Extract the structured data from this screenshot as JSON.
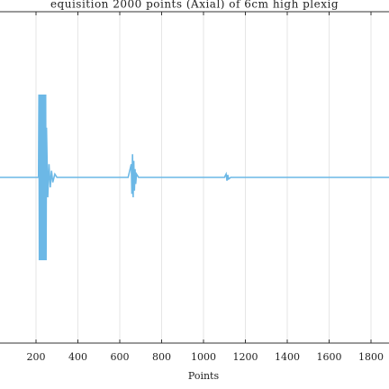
{
  "chart_data": {
    "type": "line",
    "title": "equisition 2000 points (Axial) of 6cm high plexig",
    "x_label": "Points",
    "x": [
      28,
      200,
      212,
      214,
      216,
      218,
      220,
      222,
      224,
      226,
      228,
      230,
      232,
      234,
      236,
      238,
      240,
      242,
      244,
      246,
      248,
      250,
      256,
      262,
      268,
      274,
      280,
      290,
      300,
      320,
      640,
      655,
      658,
      661,
      664,
      667,
      670,
      673,
      676,
      680,
      690,
      700,
      1100,
      1108,
      1112,
      1116,
      1120,
      1130,
      1886
    ],
    "series": [
      {
        "color": "#6cb8e6",
        "values": [
          0,
          0,
          0,
          0.5,
          -0.5,
          0.5,
          -0.5,
          0.5,
          -0.5,
          0.5,
          -0.5,
          0.5,
          -0.5,
          0.5,
          -0.5,
          0.5,
          -0.5,
          0.5,
          -0.5,
          0.5,
          -0.5,
          0.3,
          -0.12,
          0.08,
          -0.06,
          0.04,
          -0.03,
          0.02,
          0,
          0,
          0,
          0.08,
          -0.1,
          0.14,
          -0.12,
          0.1,
          -0.08,
          0.05,
          -0.04,
          0.02,
          0,
          0,
          0,
          0.02,
          -0.02,
          0.015,
          -0.01,
          0,
          0
        ]
      }
    ],
    "xlim": [
      28,
      1886
    ],
    "ylim": [
      -1,
      1
    ],
    "xticks": [
      200,
      400,
      600,
      800,
      1000,
      1200,
      1400,
      1600,
      1800
    ],
    "grid": true
  }
}
